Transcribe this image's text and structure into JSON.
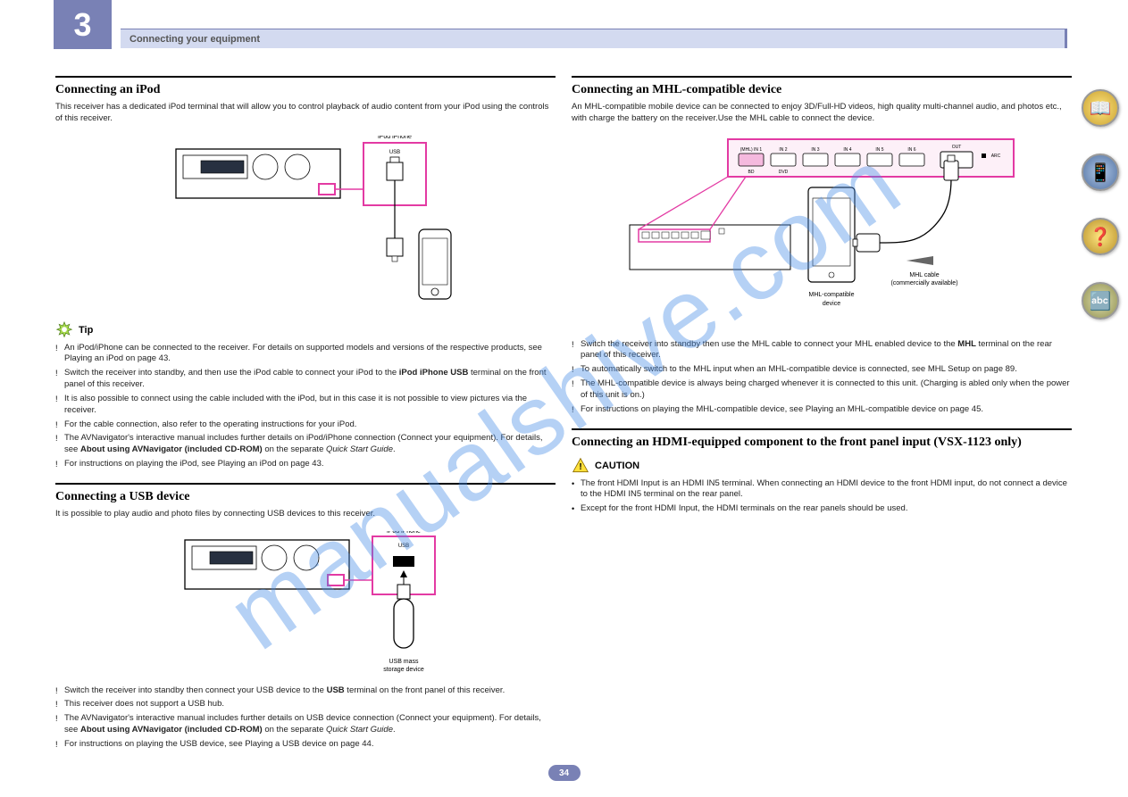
{
  "chapter_number": "3",
  "header_text": "Connecting your equipment",
  "page_number": "34",
  "watermark": "manualshive.com",
  "colors": {
    "accent": "#7981b5",
    "highlight": "#d3daf0",
    "magenta": "#e33aa3",
    "link": "#1a8cff",
    "rule": "#000000"
  },
  "side_icons": [
    {
      "name": "book-icon",
      "glyph": "📖"
    },
    {
      "name": "remote-icon",
      "glyph": "📱"
    },
    {
      "name": "help-icon",
      "glyph": "❓"
    },
    {
      "name": "abc-icon",
      "glyph": "🔤"
    }
  ],
  "sections": {
    "ipod": {
      "title": "Connecting an iPod",
      "intro": "This receiver has a dedicated iPod terminal that will allow you to control playback of audio content from your iPod using the controls of this receiver.",
      "diagram": {
        "callout_label": "iPod iPhone",
        "terminal_label": "USB",
        "device_body_color": "#ffffff",
        "device_outline_color": "#000000",
        "highlight_stroke": "#e33aa3",
        "highlight_stroke_width": 2,
        "receiver_outline": "#000000",
        "cable_color": "#000000"
      },
      "tip_label": "Tip",
      "tips": [
        {
          "prefix": "An iPod/iPhone can be connected to the receiver. For details on supported models and versions of the respective products, see ",
          "link_text": "Playing an iPod",
          "mid": " on ",
          "page_link": "page 43",
          "suffix": "."
        },
        {
          "text": "Switch the receiver into standby, and then use the iPod cable to connect your iPod to the <b>iPod iPhone USB</b> terminal on the front panel of this receiver."
        },
        {
          "text": "It is also possible to connect using the cable included with the iPod, but in this case it is not possible to view pictures via the receiver."
        },
        {
          "text": "For the cable connection, also refer to the operating instructions for your iPod."
        },
        {
          "text": "The AVNavigator's interactive manual includes further details on iPod/iPhone connection (Connect your equipment). For details, see <b>About using AVNavigator (included CD-ROM)</b> on the separate <i>Quick Start Guide</i>."
        },
        {
          "prefix": "For instructions on playing the iPod, see ",
          "link_text": "Playing an iPod",
          "mid": " on ",
          "page_link": "page 43",
          "suffix": "."
        }
      ]
    },
    "usb": {
      "title": "Connecting a USB device",
      "intro": "It is possible to play audio and photo files by connecting USB devices to this receiver.",
      "diagram": {
        "callout_label": "iPod iPhone",
        "terminal_label": "USB",
        "usb_body_color": "#000000",
        "highlight_stroke": "#e33aa3",
        "highlight_stroke_width": 2,
        "receiver_outline": "#000000",
        "label_below": "USB mass storage device"
      },
      "tips": [
        {
          "text": "Switch the receiver into standby then connect your USB device to the <b>USB</b> terminal on the front panel of this receiver."
        },
        {
          "text": "This receiver does not support a USB hub."
        },
        {
          "text": "The AVNavigator's interactive manual includes further details on USB device connection (Connect your equipment). For details, see <b>About using AVNavigator (included CD-ROM)</b> on the separate <i>Quick Start Guide</i>."
        },
        {
          "prefix": "For instructions on playing the USB device, see ",
          "link_text": "Playing a USB device",
          "mid": " on ",
          "page_link": "page 44",
          "suffix": "."
        }
      ]
    },
    "mhl": {
      "title": "Connecting an MHL-compatible device",
      "intro": "An MHL-compatible mobile device can be connected to enjoy 3D/Full-HD videos, high quality multi-channel audio, and photos etc., with charge the battery on the receiver.Use the MHL cable to connect the device.",
      "diagram": {
        "port_labels": [
          "(MHL) IN 1",
          "IN 2",
          "IN 3",
          "IN 4",
          "IN 5",
          "IN 6",
          "OUT"
        ],
        "port_group_label_left": "BD",
        "port_group_label_right": "DVD",
        "arcs_label": "ARC",
        "highlight_stroke": "#e33aa3",
        "highlight_fill": "rgba(227,58,163,0.15)",
        "cable_label": "MHL cable (commercially available)",
        "device_label": "MHL-compatible device",
        "port_outline": "#000000",
        "receiver_outline": "#000000"
      },
      "tips": [
        {
          "text": "Switch the receiver into standby then use the MHL cable to connect your MHL enabled device to the <b>MHL</b> terminal on the rear panel of this receiver."
        },
        {
          "prefix": "To automatically switch to the MHL input when an MHL-compatible device is connected, see ",
          "link_text": "MHL Setup",
          "mid": " on ",
          "page_link": "page 89",
          "suffix": "."
        },
        {
          "text": "The MHL-compatible device is always being charged whenever it is connected to this unit. (Charging is abled only when the power of this unit is on.)"
        },
        {
          "prefix": "For instructions on playing the MHL-compatible device, see ",
          "link_text": "Playing an MHL-compatible device",
          "mid": " on ",
          "page_link": "page 45",
          "suffix": "."
        }
      ]
    },
    "hdmi_component": {
      "title": "Connecting an HDMI-equipped component to the front panel input (VSX-1123 only)",
      "caution_label": "CAUTION",
      "caution_items": [
        "The front HDMI Input is an HDMI IN5 terminal. When connecting an HDMI device to the front HDMI input, do not connect a device to the HDMI IN5 terminal on the rear panel.",
        "Except for the front HDMI Input, the HDMI terminals on the rear panels should be used."
      ]
    }
  }
}
